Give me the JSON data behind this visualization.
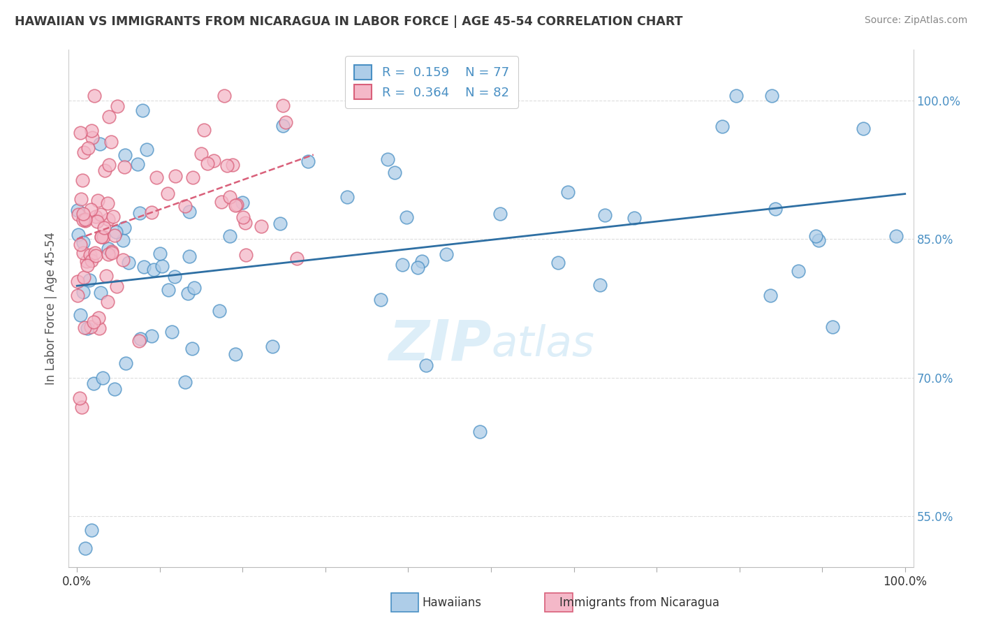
{
  "title": "HAWAIIAN VS IMMIGRANTS FROM NICARAGUA IN LABOR FORCE | AGE 45-54 CORRELATION CHART",
  "source": "Source: ZipAtlas.com",
  "ylabel": "In Labor Force | Age 45-54",
  "ytick_labels": [
    "55.0%",
    "70.0%",
    "85.0%",
    "100.0%"
  ],
  "ytick_values": [
    0.55,
    0.7,
    0.85,
    1.0
  ],
  "xlim": [
    -0.01,
    1.01
  ],
  "ylim": [
    0.495,
    1.055
  ],
  "blue_fill": "#aecde8",
  "blue_edge": "#4a90c4",
  "pink_fill": "#f4b8c8",
  "pink_edge": "#d9607a",
  "blue_line": "#2e6fa3",
  "pink_line": "#d9607a",
  "title_color": "#3a3a3a",
  "axis_label_color": "#4a90c4",
  "source_color": "#888888",
  "grid_color": "#dddddd",
  "watermark_color": "#ddeef8",
  "legend_text_color": "#4a90c4"
}
